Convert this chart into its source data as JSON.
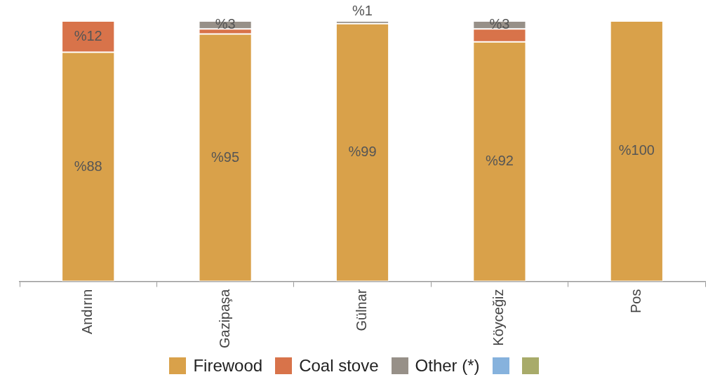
{
  "chart_data": {
    "type": "bar",
    "stacked": true,
    "legend": "bottom",
    "grid": false,
    "categories": [
      "Andırın",
      "Gazipaşa",
      "Gülnar",
      "Köyceğiz",
      "Pos"
    ],
    "series": [
      {
        "name": "Firewood",
        "color": "#d9a14a",
        "values": [
          88,
          95,
          99,
          92,
          100
        ],
        "value_labels": [
          "%88",
          "%95",
          "%99",
          "%92",
          "%100"
        ]
      },
      {
        "name": "Coal stove",
        "color": "#d8734a",
        "values": [
          12,
          2,
          0,
          5,
          0
        ],
        "value_labels": [
          "%12",
          null,
          null,
          null,
          null
        ]
      },
      {
        "name": "Other (*)",
        "color": "#979088",
        "values": [
          0,
          3,
          1,
          3,
          0
        ],
        "value_labels": [
          null,
          "%3",
          "%1",
          "%3",
          null
        ]
      },
      {
        "color": "#86b2dd",
        "values": [
          null,
          null,
          null,
          null,
          null
        ]
      },
      {
        "color": "#a8ab6a",
        "values": [
          null,
          null,
          null,
          null,
          null
        ]
      }
    ]
  }
}
